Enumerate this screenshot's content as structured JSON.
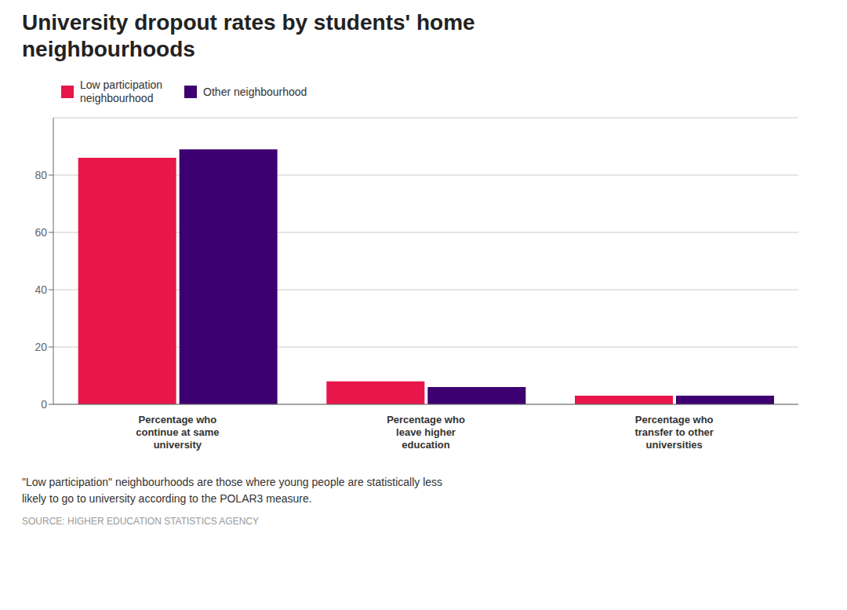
{
  "chart_data": {
    "type": "bar",
    "title": "University dropout rates by students' home\nneighbourhoods",
    "categories": [
      "Percentage who\ncontinue at same\nuniversity",
      "Percentage who\nleave higher\neducation",
      "Percentage who\ntransfer to other\nuniversities"
    ],
    "series": [
      {
        "name": "Low participation\nneighbourhood",
        "color": "#E8164A",
        "values": [
          86,
          8,
          3
        ]
      },
      {
        "name": "Other neighbourhood",
        "color": "#3D0070",
        "values": [
          89,
          6,
          3
        ]
      }
    ],
    "ylim": [
      0,
      100
    ],
    "yticks": [
      0,
      20,
      40,
      60,
      80
    ],
    "grid": true,
    "legend": "upper left",
    "annotations": [
      "\"Low participation\" neighbourhoods are those where young people are statistically less\nlikely to go to university according to the POLAR3 measure.",
      "SOURCE: HIGHER EDUCATION STATISTICS AGENCY"
    ]
  }
}
